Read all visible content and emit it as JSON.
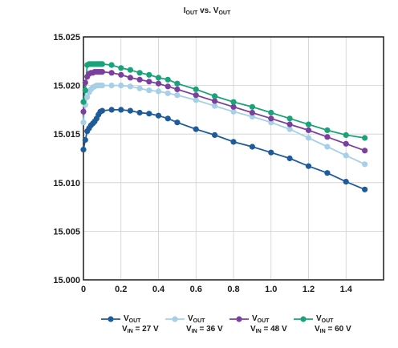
{
  "chart_data": {
    "type": "line",
    "title": {
      "base1": "I",
      "sub1": "OUT",
      "mid": " vs. V",
      "sub2": "OUT"
    },
    "xlim": [
      0,
      1.6
    ],
    "ylim": [
      15.0,
      15.025
    ],
    "x_ticks": [
      "0",
      "0.2",
      "0.4",
      "0.6",
      "0.8",
      "1.0",
      "1.2",
      "1.4"
    ],
    "x_tick_values": [
      0,
      0.2,
      0.4,
      0.6,
      0.8,
      1.0,
      1.2,
      1.4
    ],
    "y_ticks": [
      "15.000",
      "15.005",
      "15.010",
      "15.015",
      "15.020",
      "15.025"
    ],
    "y_tick_values": [
      15.0,
      15.005,
      15.01,
      15.015,
      15.02,
      15.025
    ],
    "grid": true,
    "legend_position": "bottom",
    "series": [
      {
        "color": "#1e5b9a",
        "legend": {
          "l1a": "V",
          "l1b": "OUT",
          "l2a": "V",
          "l2b": "IN",
          "l2c": " = 27 V"
        },
        "x": [
          0,
          0.01,
          0.02,
          0.03,
          0.04,
          0.05,
          0.06,
          0.07,
          0.08,
          0.09,
          0.1,
          0.15,
          0.2,
          0.25,
          0.3,
          0.35,
          0.4,
          0.45,
          0.5,
          0.6,
          0.7,
          0.8,
          0.9,
          1.0,
          1.1,
          1.2,
          1.3,
          1.4,
          1.5
        ],
        "values": [
          15.0134,
          15.0144,
          15.0153,
          15.0156,
          15.0159,
          15.0161,
          15.0163,
          15.0166,
          15.017,
          15.0173,
          15.0174,
          15.0175,
          15.0175,
          15.0174,
          15.0172,
          15.0171,
          15.0169,
          15.0166,
          15.0162,
          15.0155,
          15.0149,
          15.0142,
          15.0137,
          15.0131,
          15.0125,
          15.0117,
          15.011,
          15.0101,
          15.0093
        ]
      },
      {
        "color": "#a6cfe8",
        "legend": {
          "l1a": "V",
          "l1b": "OUT",
          "l2a": "V",
          "l2b": "IN",
          "l2c": " = 36 V"
        },
        "x": [
          0,
          0.01,
          0.02,
          0.03,
          0.04,
          0.05,
          0.06,
          0.07,
          0.08,
          0.09,
          0.1,
          0.15,
          0.2,
          0.25,
          0.3,
          0.35,
          0.4,
          0.45,
          0.5,
          0.6,
          0.7,
          0.8,
          0.9,
          1.0,
          1.1,
          1.2,
          1.3,
          1.4,
          1.5
        ],
        "values": [
          15.0162,
          15.018,
          15.0188,
          15.0193,
          15.0196,
          15.0198,
          15.0199,
          15.02,
          15.02,
          15.02,
          15.02,
          15.02,
          15.02,
          15.0199,
          15.0197,
          15.0195,
          15.0194,
          15.0192,
          15.019,
          15.0185,
          15.0179,
          15.0173,
          15.0168,
          15.0162,
          15.0155,
          15.0146,
          15.0137,
          15.0128,
          15.0119
        ]
      },
      {
        "color": "#7b3f9e",
        "legend": {
          "l1a": "V",
          "l1b": "OUT",
          "l2a": "V",
          "l2b": "IN",
          "l2c": " = 48 V"
        },
        "x": [
          0,
          0.01,
          0.02,
          0.03,
          0.04,
          0.05,
          0.06,
          0.07,
          0.08,
          0.09,
          0.1,
          0.15,
          0.2,
          0.25,
          0.3,
          0.35,
          0.4,
          0.45,
          0.5,
          0.6,
          0.7,
          0.8,
          0.9,
          1.0,
          1.1,
          1.2,
          1.3,
          1.4,
          1.5
        ],
        "values": [
          15.0173,
          15.0203,
          15.0209,
          15.0212,
          15.0213,
          15.0213,
          15.0214,
          15.0214,
          15.0214,
          15.0214,
          15.0214,
          15.0213,
          15.0211,
          15.0208,
          15.0206,
          15.0204,
          15.0202,
          15.0199,
          15.0196,
          15.019,
          15.0184,
          15.0178,
          15.0172,
          15.0166,
          15.016,
          15.0154,
          15.0147,
          15.014,
          15.0133
        ]
      },
      {
        "color": "#1aa37a",
        "legend": {
          "l1a": "V",
          "l1b": "OUT",
          "l2a": "V",
          "l2b": "IN",
          "l2c": " = 60 V"
        },
        "x": [
          0,
          0.01,
          0.02,
          0.03,
          0.04,
          0.05,
          0.06,
          0.07,
          0.08,
          0.09,
          0.1,
          0.15,
          0.2,
          0.25,
          0.3,
          0.35,
          0.4,
          0.45,
          0.5,
          0.6,
          0.7,
          0.8,
          0.9,
          1.0,
          1.1,
          1.2,
          1.3,
          1.4,
          1.5
        ],
        "values": [
          15.0183,
          15.0195,
          15.0221,
          15.0222,
          15.0222,
          15.0222,
          15.0222,
          15.0222,
          15.0222,
          15.0222,
          15.0222,
          15.0221,
          15.0218,
          15.0216,
          15.0213,
          15.0211,
          15.0208,
          15.0206,
          15.0202,
          15.0196,
          15.0189,
          15.0183,
          15.0178,
          15.0172,
          15.0166,
          15.016,
          15.0154,
          15.0149,
          15.0146
        ]
      }
    ]
  }
}
